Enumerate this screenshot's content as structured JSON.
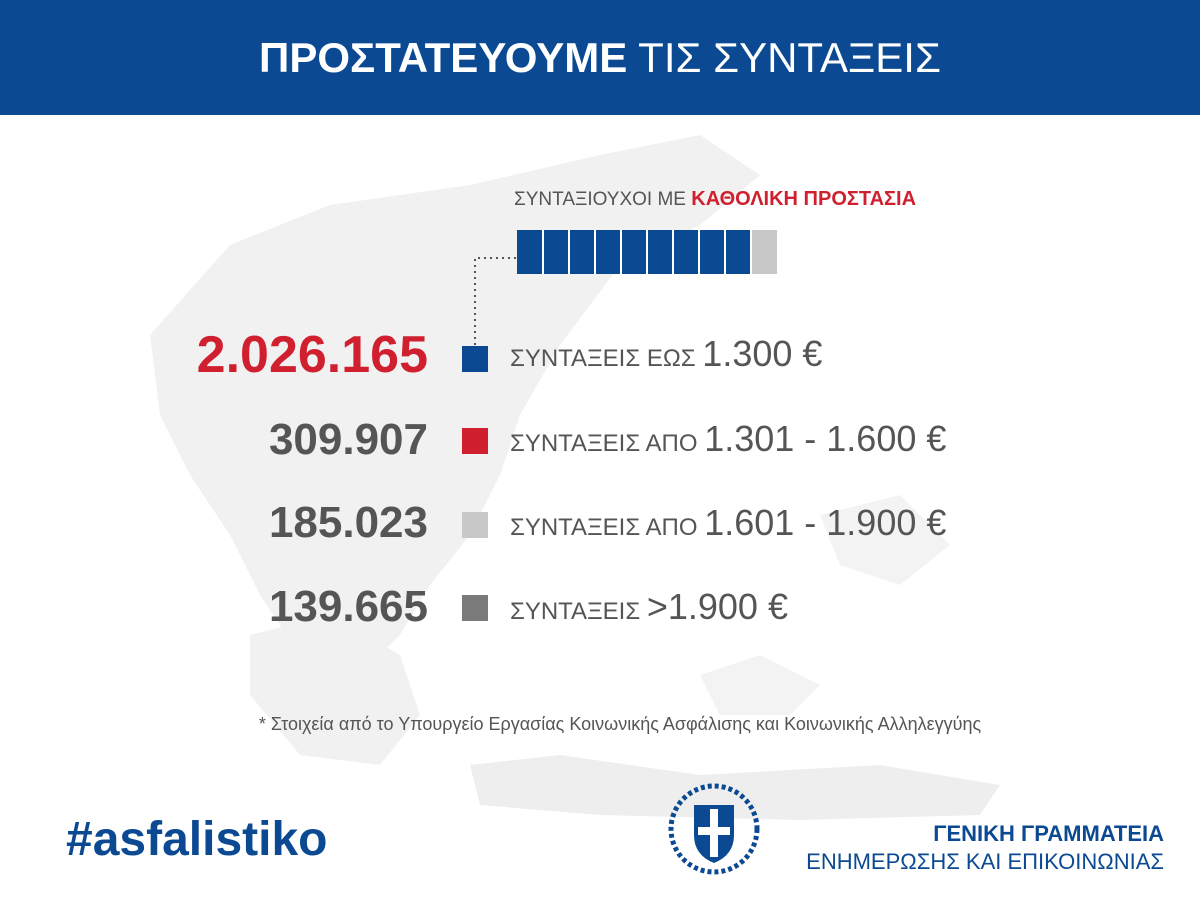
{
  "header": {
    "title_bold": "ΠΡΟΣΤΑΤΕΥΟΥΜΕ",
    "title_rest": "ΤΙΣ ΣΥΝΤΑΞΕΙΣ"
  },
  "protection": {
    "label": "ΣΥΝΤΑΞΙΟΥΧΟΙ ΜΕ",
    "highlight": "ΚΑΘΟΛΙΚΗ ΠΡΟΣΤΑΣΙΑ"
  },
  "rows": [
    {
      "count": "2.026.165",
      "label": "ΣΥΝΤΑΞΕΙΣ ΕΩΣ",
      "amount": "1.300 €"
    },
    {
      "count": "309.907",
      "label": "ΣΥΝΤΑΞΕΙΣ ΑΠΟ",
      "amount": "1.301 - 1.600 €"
    },
    {
      "count": "185.023",
      "label": "ΣΥΝΤΑΞΕΙΣ ΑΠΟ",
      "amount": "1.601 - 1.900 €"
    },
    {
      "count": "139.665",
      "label": "ΣΥΝΤΑΞΕΙΣ",
      "amount": ">1.900 €"
    }
  ],
  "footnote": "* Στοιχεία από το Υπουργείο Εργασίας Κοινωνικής Ασφάλισης και Κοινωνικής Αλληλεγγύης",
  "hashtag": "#asfalistiko",
  "org": {
    "line1": "ΓΕΝΙΚΗ ΓΡΑΜΜΑΤΕΙΑ",
    "line2": "ΕΝΗΜΕΡΩΣΗΣ ΚΑΙ ΕΠΙΚΟΙΝΩΝΙΑΣ"
  }
}
